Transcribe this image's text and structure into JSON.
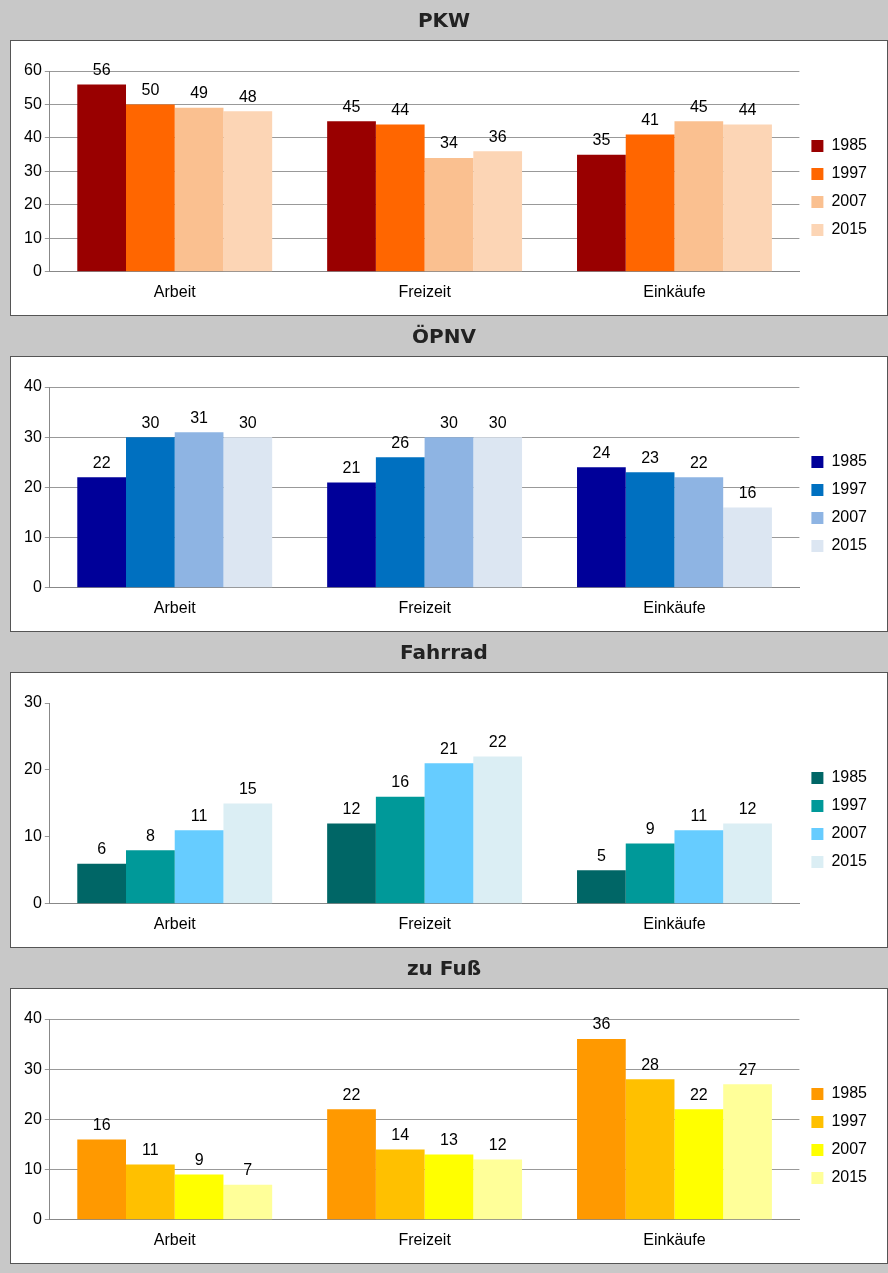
{
  "chart_data": [
    {
      "type": "bar",
      "title": "PKW",
      "categories": [
        "Arbeit",
        "Freizeit",
        "Einkäufe"
      ],
      "series": [
        {
          "name": "1985",
          "color": "#990000",
          "values": [
            56,
            45,
            35
          ]
        },
        {
          "name": "1997",
          "color": "#ff6600",
          "values": [
            50,
            44,
            41
          ]
        },
        {
          "name": "2007",
          "color": "#fac090",
          "values": [
            49,
            34,
            45
          ]
        },
        {
          "name": "2015",
          "color": "#fcd5b5",
          "values": [
            48,
            36,
            44
          ]
        }
      ],
      "ylim": [
        0,
        60
      ],
      "yticks": [
        0,
        10,
        20,
        30,
        40,
        50,
        60
      ],
      "grid": "y",
      "legend": "right",
      "data_labels": true
    },
    {
      "type": "bar",
      "title": "ÖPNV",
      "categories": [
        "Arbeit",
        "Freizeit",
        "Einkäufe"
      ],
      "series": [
        {
          "name": "1985",
          "color": "#000099",
          "values": [
            22,
            21,
            24
          ]
        },
        {
          "name": "1997",
          "color": "#0070c0",
          "values": [
            30,
            26,
            23
          ]
        },
        {
          "name": "2007",
          "color": "#8eb4e3",
          "values": [
            31,
            30,
            22
          ]
        },
        {
          "name": "2015",
          "color": "#dce6f2",
          "values": [
            30,
            30,
            16
          ]
        }
      ],
      "ylim": [
        0,
        40
      ],
      "yticks": [
        0,
        10,
        20,
        30,
        40
      ],
      "grid": "y",
      "legend": "right",
      "data_labels": true
    },
    {
      "type": "bar",
      "title": "Fahrrad",
      "categories": [
        "Arbeit",
        "Freizeit",
        "Einkäufe"
      ],
      "series": [
        {
          "name": "1985",
          "color": "#006666",
          "values": [
            6,
            12,
            5
          ]
        },
        {
          "name": "1997",
          "color": "#009999",
          "values": [
            8,
            16,
            9
          ]
        },
        {
          "name": "2007",
          "color": "#66ccff",
          "values": [
            11,
            21,
            11
          ]
        },
        {
          "name": "2015",
          "color": "#dbeef4",
          "values": [
            15,
            22,
            12
          ]
        }
      ],
      "ylim": [
        0,
        30
      ],
      "yticks": [
        0,
        10,
        20,
        30
      ],
      "grid": false,
      "legend": "right",
      "data_labels": true
    },
    {
      "type": "bar",
      "title": "zu Fuß",
      "categories": [
        "Arbeit",
        "Freizeit",
        "Einkäufe"
      ],
      "series": [
        {
          "name": "1985",
          "color": "#ff9900",
          "values": [
            16,
            22,
            36
          ]
        },
        {
          "name": "1997",
          "color": "#ffc000",
          "values": [
            11,
            14,
            28
          ]
        },
        {
          "name": "2007",
          "color": "#ffff00",
          "values": [
            9,
            13,
            22
          ]
        },
        {
          "name": "2015",
          "color": "#ffff99",
          "values": [
            7,
            12,
            27
          ]
        }
      ],
      "ylim": [
        0,
        40
      ],
      "yticks": [
        0,
        10,
        20,
        30,
        40
      ],
      "grid": "y",
      "legend": "right",
      "data_labels": true
    }
  ]
}
